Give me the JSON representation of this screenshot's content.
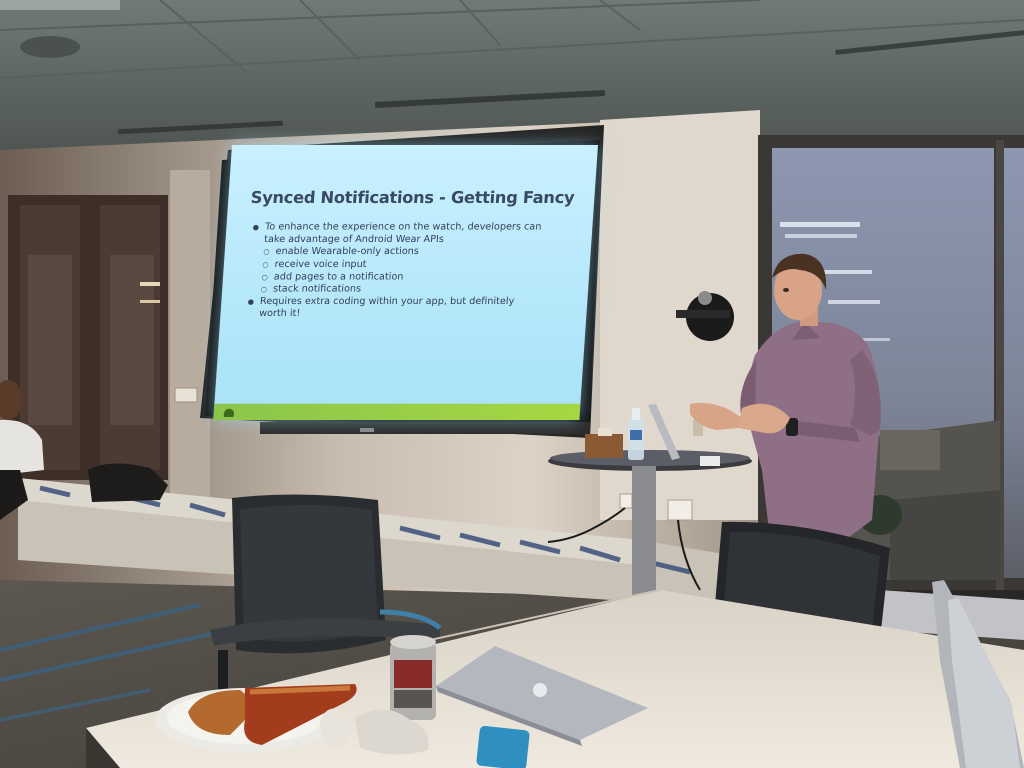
{
  "slide": {
    "title": "Synced Notifications - Getting Fancy",
    "bullets": [
      {
        "level": 1,
        "text": "To enhance the experience on the watch, developers can"
      },
      {
        "level": 1,
        "text": "take advantage of Android Wear APIs"
      },
      {
        "level": 2,
        "text": "enable Wearable-only actions"
      },
      {
        "level": 2,
        "text": "receive voice input"
      },
      {
        "level": 2,
        "text": "add pages to a notification"
      },
      {
        "level": 2,
        "text": "stack notifications"
      },
      {
        "level": 1,
        "text": "Requires extra coding within your app, but definitely"
      },
      {
        "level": 1,
        "text": "worth it!"
      }
    ]
  },
  "colors": {
    "slide_background": "#b6e8fb",
    "slide_title": "#3b4a63",
    "slide_footer": "#8bc64a",
    "shirt": "#8e6f86",
    "table": "#e6e0d6"
  }
}
